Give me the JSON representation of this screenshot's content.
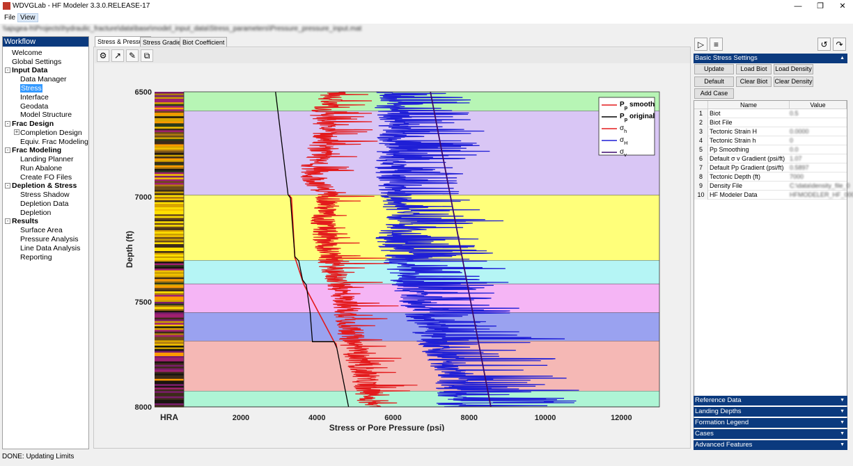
{
  "window": {
    "title": "WDVGLab - HF Modeler 3.3.0.RELEASE-17",
    "min_icon": "minimize-icon",
    "max_icon": "restore-icon",
    "close_icon": "close-icon"
  },
  "menu": {
    "file": "File",
    "view": "View"
  },
  "path_bar": {
    "text": "\\\\ajsgea-h\\Projects\\hydraulic_fracture\\data\\base\\model_input_data\\Stress_parameters\\Pressure_pressure_input.mat"
  },
  "workflow": {
    "title": "Workflow",
    "items": {
      "welcome": "Welcome",
      "global_settings": "Global Settings",
      "input_data": "Input Data",
      "data_manager": "Data Manager",
      "stress": "Stress",
      "interface": "Interface",
      "geodata": "Geodata",
      "model_structure": "Model Structure",
      "frac_design": "Frac Design",
      "completion_design": "Completion Design",
      "equiv_frac": "Equiv. Frac Modeling",
      "frac_modeling": "Frac Modeling",
      "landing_planner": "Landing Planner",
      "run_abalone": "Run Abalone",
      "create_fo": "Create FO Files",
      "depletion_stress": "Depletion & Stress",
      "stress_shadow": "Stress Shadow",
      "depletion_data": "Depletion Data",
      "depletion": "Depletion",
      "results": "Results",
      "surface_area": "Surface Area",
      "pressure_analysis": "Pressure Analysis",
      "line_data": "Line Data Analysis",
      "reporting": "Reporting"
    }
  },
  "tabs": {
    "t1": "Stress & Pressure",
    "t2": "Stress Gradient",
    "t3": "Biot Coefficient"
  },
  "toolbar_icons": [
    "gear-icon",
    "export-icon",
    "edit-icon",
    "copy-icon"
  ],
  "right": {
    "run_icon": "play-icon",
    "add_icon": "add-list-icon",
    "undo_icon": "undo-icon",
    "redo_icon": "redo-icon",
    "basic_section": "Basic Stress Settings",
    "buttons": {
      "update": "Update",
      "load_biot": "Load Biot",
      "load_density": "Load Density",
      "default": "Default",
      "clear_biot": "Clear Biot",
      "clear_density": "Clear Density",
      "add_case": "Add Case"
    },
    "table": {
      "col_name": "Name",
      "col_value": "Value",
      "rows": [
        {
          "n": "1",
          "name": "Biot",
          "value": "0.5"
        },
        {
          "n": "2",
          "name": "Biot File",
          "value": ""
        },
        {
          "n": "3",
          "name": "Tectonic Strain H",
          "value": "0.0000"
        },
        {
          "n": "4",
          "name": "Tectonic Strain h",
          "value": "0"
        },
        {
          "n": "5",
          "name": "Pp Smoothing",
          "value": "0.0"
        },
        {
          "n": "6",
          "name": "Default σ v Gradient (psi/ft)",
          "value": "1.07"
        },
        {
          "n": "7",
          "name": "Default Pp Gradient (psi/ft)",
          "value": "0.5897"
        },
        {
          "n": "8",
          "name": "Tectonic Depth (ft)",
          "value": "7000"
        },
        {
          "n": "9",
          "name": "Density File",
          "value": "C:\\data\\density_file_0"
        },
        {
          "n": "10",
          "name": "HF Modeler Data",
          "value": "HFMODELER_HF_0001"
        }
      ]
    },
    "sections": [
      "Reference Data",
      "Landing Depths",
      "Formation Legend",
      "Cases",
      "Advanced Features"
    ]
  },
  "status": "DONE: Updating Limits",
  "colors": {
    "accent": "#0b3a7e",
    "pp_smooth": "#e31a1c",
    "pp_original": "#000000",
    "sigma_h": "#e31a1c",
    "sigma_H": "#1f1fd6",
    "sigma_v": "#3b0a6e"
  },
  "chart_data": {
    "type": "line",
    "xlabel": "Stress or Pore Pressure (psi)",
    "ylabel": "Depth (ft)",
    "track_label": "HRA",
    "xlim": [
      500,
      13000
    ],
    "ylim": [
      6500,
      8000
    ],
    "y_reversed": true,
    "x_ticks": [
      2000,
      4000,
      6000,
      8000,
      10000,
      12000
    ],
    "y_ticks": [
      6500,
      7000,
      7500,
      8000
    ],
    "legend": [
      {
        "label": "P",
        "sub": "p",
        "suffix": " smooth",
        "color": "#e31a1c",
        "bold": true
      },
      {
        "label": "P",
        "sub": "p",
        "suffix": " original",
        "color": "#000000",
        "bold": true
      },
      {
        "label": "σ",
        "sub": "h",
        "suffix": "",
        "color": "#e31a1c",
        "bold": false
      },
      {
        "label": "σ",
        "sub": "H",
        "suffix": "",
        "color": "#1f1fd6",
        "bold": false
      },
      {
        "label": "σ",
        "sub": "v",
        "suffix": "",
        "color": "#3b0a6e",
        "bold": false
      }
    ],
    "legend_position": "top-right",
    "zones": [
      {
        "from": 6500,
        "to": 6592,
        "color": "#b7f5b5"
      },
      {
        "from": 6592,
        "to": 6992,
        "color": "#d9c6f5"
      },
      {
        "from": 6992,
        "to": 7303,
        "color": "#ffff7a"
      },
      {
        "from": 7303,
        "to": 7415,
        "color": "#b5f5f5"
      },
      {
        "from": 7415,
        "to": 7552,
        "color": "#f5b5f5"
      },
      {
        "from": 7552,
        "to": 7687,
        "color": "#9aa2f0"
      },
      {
        "from": 7687,
        "to": 7925,
        "color": "#f5b8b5"
      },
      {
        "from": 7925,
        "to": 8000,
        "color": "#aef5d5"
      }
    ],
    "series": [
      {
        "name": "σv",
        "x": [
          6980,
          8570
        ],
        "y": [
          6500,
          8000
        ]
      },
      {
        "name": "Pp original",
        "x": [
          2910,
          3240,
          3300,
          3420,
          3520,
          3620,
          3720,
          3820,
          3880,
          3900,
          4450,
          4520,
          4830
        ],
        "y": [
          6500,
          6990,
          7005,
          7285,
          7305,
          7395,
          7420,
          7550,
          7690,
          7690,
          7690,
          7720,
          8000
        ]
      },
      {
        "name": "Pp smooth",
        "x": [
          3270,
          3300,
          3330,
          3420,
          3450,
          3620,
          3660,
          4450,
          4500,
          4520
        ],
        "y": [
          6990,
          7000,
          7005,
          7290,
          7305,
          7400,
          7420,
          7690,
          7700,
          7720
        ]
      },
      {
        "name": "σh",
        "x": [
          4400,
          4100,
          4200,
          4000,
          3800,
          4300,
          4100,
          4200,
          4300,
          4700,
          4900,
          5200,
          5400
        ],
        "y": [
          6500,
          6600,
          6700,
          6800,
          6900,
          7000,
          7100,
          7200,
          7300,
          7500,
          7700,
          7850,
          8000
        ]
      },
      {
        "name": "σH",
        "x": [
          5600,
          5800,
          5900,
          5700,
          5800,
          5900,
          6100,
          5800,
          6000,
          6400,
          6900,
          7400,
          7300
        ],
        "y": [
          6500,
          6600,
          6700,
          6800,
          6900,
          7000,
          7100,
          7200,
          7300,
          7500,
          7700,
          7850,
          8000
        ]
      }
    ]
  }
}
